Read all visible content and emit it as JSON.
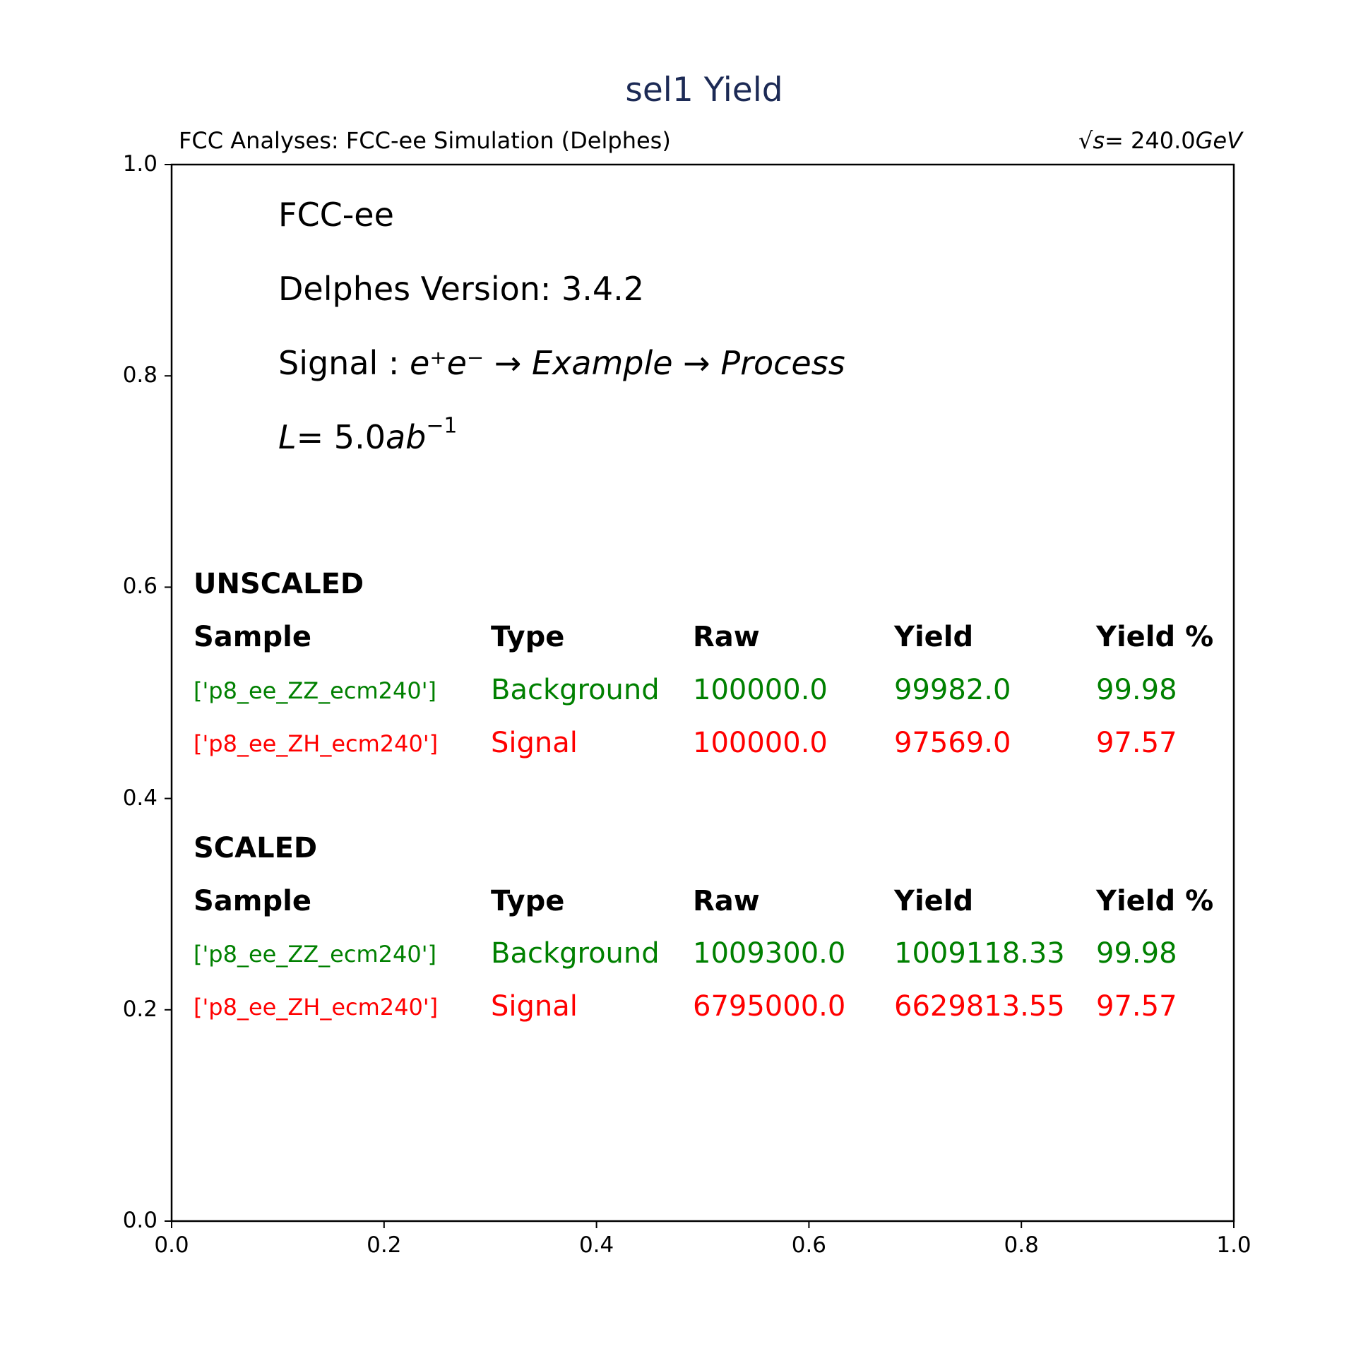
{
  "chart_data": {
    "type": "table",
    "title": "sel1 Yield",
    "header_left": "FCC Analyses: FCC-ee Simulation (Delphes)",
    "header_right": {
      "sqrt_s_lhs": "√s",
      "sqrt_s_value": "= 240.0",
      "unit": "GeV"
    },
    "xlim": [
      0.0,
      1.0
    ],
    "ylim": [
      0.0,
      1.0
    ],
    "xticks": [
      "0.0",
      "0.2",
      "0.4",
      "0.6",
      "0.8",
      "1.0"
    ],
    "yticks": [
      "0.0",
      "0.2",
      "0.4",
      "0.6",
      "0.8",
      "1.0"
    ],
    "notes": {
      "collider": "FCC-ee",
      "delphes": "Delphes Version: 3.4.2",
      "signal_prefix": "Signal : ",
      "signal_process": "e⁺e⁻ → Example → Process",
      "luminosity_lhs": "L",
      "luminosity_value": "= 5.0",
      "luminosity_unit": "ab",
      "luminosity_exp": "−1"
    },
    "columns": [
      "Sample",
      "Type",
      "Raw",
      "Yield",
      "Yield %"
    ],
    "unscaled": {
      "label": "UNSCALED",
      "rows": [
        {
          "sample": "['p8_ee_ZZ_ecm240']",
          "type": "Background",
          "raw": "100000.0",
          "yield": "99982.0",
          "yield_pct": "99.98",
          "color": "#008000"
        },
        {
          "sample": "['p8_ee_ZH_ecm240']",
          "type": "Signal",
          "raw": "100000.0",
          "yield": "97569.0",
          "yield_pct": "97.57",
          "color": "#ff0000"
        }
      ]
    },
    "scaled": {
      "label": "SCALED",
      "rows": [
        {
          "sample": "['p8_ee_ZZ_ecm240']",
          "type": "Background",
          "raw": "1009300.0",
          "yield": "1009118.33",
          "yield_pct": "99.98",
          "color": "#008000"
        },
        {
          "sample": "['p8_ee_ZH_ecm240']",
          "type": "Signal",
          "raw": "6795000.0",
          "yield": "6629813.55",
          "yield_pct": "97.57",
          "color": "#ff0000"
        }
      ]
    }
  },
  "colors": {
    "title": "#1c2a55",
    "background_rows": "#008000",
    "signal_rows": "#ff0000"
  }
}
